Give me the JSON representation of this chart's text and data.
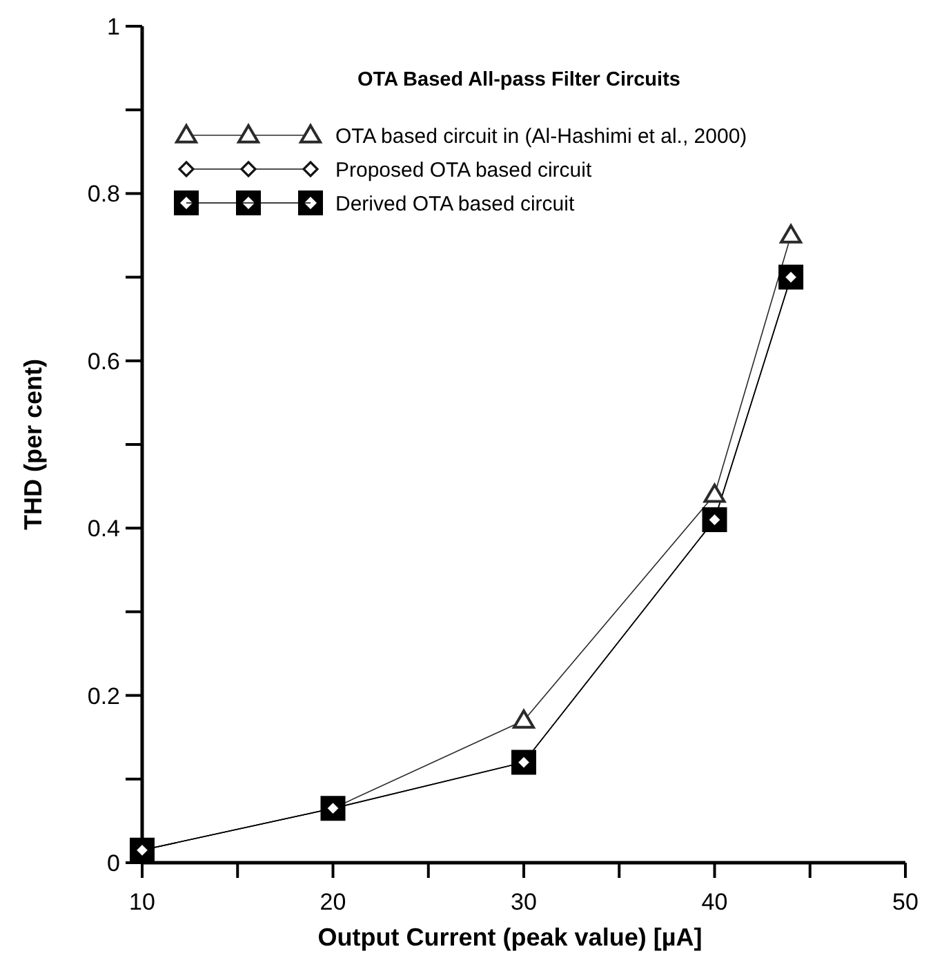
{
  "chart_data": {
    "type": "line",
    "title": "OTA Based All-pass Filter Circuits",
    "xlabel": "Output Current (peak value) [µA]",
    "ylabel": "THD (per cent)",
    "x": [
      10,
      20,
      30,
      40,
      44
    ],
    "series": [
      {
        "name": "OTA based circuit in (Al-Hashimi et al., 2000)",
        "color": "#2a2a2a",
        "marker": "triangle",
        "values": [
          0.015,
          0.065,
          0.17,
          0.44,
          0.75
        ]
      },
      {
        "name": "Proposed OTA based circuit",
        "color": "#141414",
        "marker": "diamond",
        "values": [
          0.015,
          0.065,
          0.12,
          0.41,
          0.7
        ]
      },
      {
        "name": "Derived OTA based circuit",
        "color": "#000000",
        "marker": "square",
        "values": [
          0.015,
          0.065,
          0.12,
          0.41,
          0.7
        ]
      }
    ],
    "xlim": [
      10,
      50
    ],
    "ylim": [
      0,
      1
    ],
    "xticks": [
      10,
      {
        "value": 15,
        "label": null
      },
      20,
      {
        "value": 25,
        "label": null
      },
      30,
      {
        "value": 35,
        "label": null
      },
      40,
      {
        "value": 45,
        "label": null
      },
      50
    ],
    "yticks": [
      0,
      {
        "value": 0.1,
        "label": null
      },
      0.2,
      {
        "value": 0.3,
        "label": null
      },
      0.4,
      {
        "value": 0.5,
        "label": null
      },
      0.6,
      {
        "value": 0.7,
        "label": null
      },
      0.8,
      {
        "value": 0.9,
        "label": null
      },
      1
    ],
    "legend": "top left",
    "grid": false,
    "line_style": "solid"
  }
}
